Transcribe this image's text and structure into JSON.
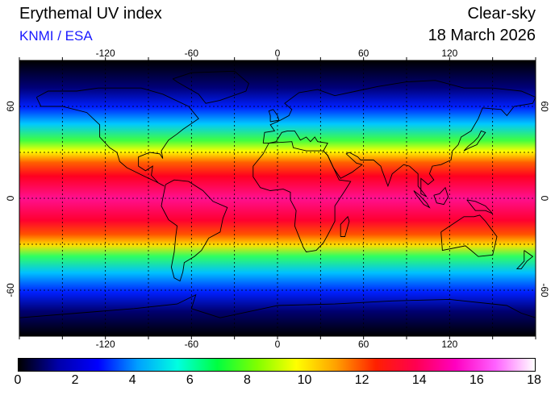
{
  "header": {
    "title": "Erythemal UV index",
    "credit": "KNMI / ESA",
    "sky": "Clear-sky",
    "date": "18 March 2026"
  },
  "map": {
    "lon_ticks": [
      "-120",
      "-60",
      "0",
      "60",
      "120"
    ],
    "lat_ticks": [
      "60",
      "0",
      "-60"
    ],
    "lon_range": [
      -180,
      180
    ],
    "lat_range": [
      -90,
      90
    ],
    "grid_interval_deg": 30,
    "grid_style": "dotted"
  },
  "colorbar": {
    "labels": [
      "0",
      "2",
      "4",
      "6",
      "8",
      "10",
      "12",
      "14",
      "16",
      "18"
    ],
    "range": [
      0,
      18
    ],
    "colors": [
      "#000000",
      "#0000aa",
      "#0000ff",
      "#00a0ff",
      "#00ffe0",
      "#00ff40",
      "#80ff00",
      "#ffff00",
      "#ffa000",
      "#ff2000",
      "#ff0050",
      "#ff00c0",
      "#ff60ff",
      "#ffffff"
    ]
  }
}
